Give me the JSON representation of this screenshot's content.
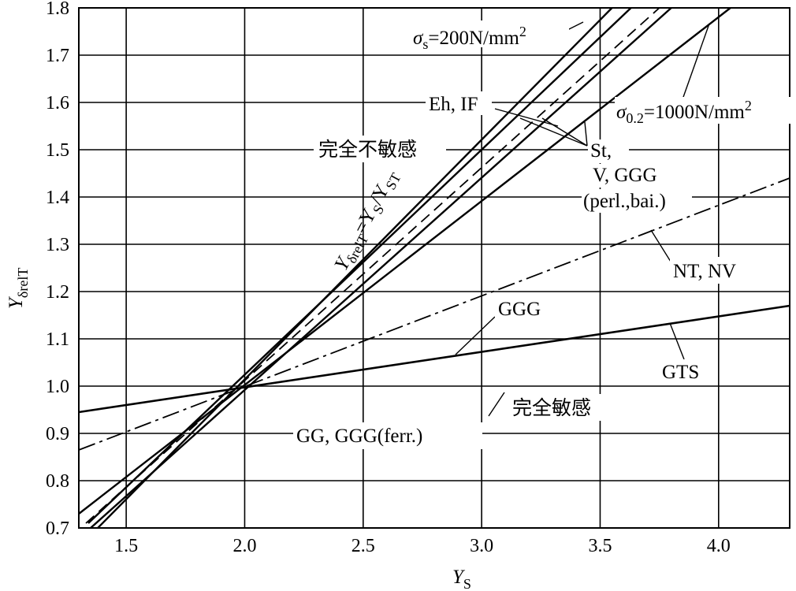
{
  "chart_data": {
    "type": "line",
    "title": "",
    "xlabel": "Y",
    "xlabel_sub": "S",
    "ylabel": "Y",
    "ylabel_sub": "δrelT",
    "xlim": [
      1.3,
      4.3
    ],
    "ylim": [
      0.7,
      1.8
    ],
    "x_ticks": [
      1.5,
      2.0,
      2.5,
      3.0,
      3.5,
      4.0
    ],
    "x_tick_labels": [
      "1.5",
      "2.0",
      "2.5",
      "3.0",
      "3.5",
      "4.0"
    ],
    "y_ticks": [
      0.7,
      0.8,
      0.9,
      1.0,
      1.1,
      1.2,
      1.3,
      1.4,
      1.5,
      1.6,
      1.7,
      1.8
    ],
    "y_tick_labels": [
      "0.7",
      "0.8",
      "0.9",
      "1.0",
      "1.1",
      "1.2",
      "1.3",
      "1.4",
      "1.5",
      "1.6",
      "1.7",
      "1.8"
    ],
    "grid": true,
    "series": [
      {
        "x": [
          1.35,
          3.8
        ],
        "y": [
          0.7,
          1.8
        ],
        "style": "solid",
        "width": 2.4
      },
      {
        "x": [
          1.38,
          3.55
        ],
        "y": [
          0.7,
          1.8
        ],
        "style": "solid",
        "width": 2.4
      },
      {
        "x": [
          1.34,
          3.63
        ],
        "y": [
          0.71,
          1.8
        ],
        "style": "solid",
        "width": 2.4
      },
      {
        "x": [
          1.33,
          3.75
        ],
        "y": [
          0.71,
          1.8
        ],
        "style": "dashed",
        "width": 1.8
      },
      {
        "x": [
          1.3,
          4.05
        ],
        "y": [
          0.73,
          1.8
        ],
        "style": "solid",
        "width": 2.4
      },
      {
        "x": [
          1.3,
          4.3
        ],
        "y": [
          0.865,
          1.44
        ],
        "style": "dashdot",
        "width": 1.8
      },
      {
        "x": [
          1.3,
          4.3
        ],
        "y": [
          0.945,
          1.17
        ],
        "style": "solid",
        "width": 2.6
      }
    ],
    "annotations": {
      "sigma_s": "σs=200N/mm²",
      "sigma_s_sym": "σ",
      "sigma_s_sub": "s",
      "sigma_s_rest": "=200N/mm",
      "sigma_s_sup": "2",
      "sigma_02_sym": "σ",
      "sigma_02_sub": "0.2",
      "sigma_02_rest": "=1000N/mm",
      "sigma_02_sup": "2",
      "eh_if": "Eh, IF",
      "st": "St,",
      "v_ggg": "V, GGG",
      "perl_bai": "(perl.,bai.)",
      "unsensitive": "完全不敏感",
      "formula_main": "Y",
      "formula_sub1": "δrelT",
      "formula_mid": "=Y",
      "formula_sub2": "S",
      "formula_slash": "/Y",
      "formula_sub3": "ST",
      "nt_nv": "NT, NV",
      "ggg": "GGG",
      "gts": "GTS",
      "sensitive": "完全敏感",
      "gg_ggg_ferr": "GG, GGG(ferr.)"
    }
  }
}
